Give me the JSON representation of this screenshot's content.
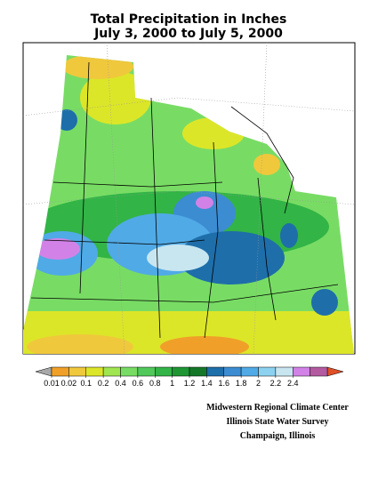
{
  "title": [
    "Total Precipitation in Inches",
    "July 3, 2000 to July 5, 2000"
  ],
  "legend": {
    "ticks": [
      0.01,
      0.02,
      0.1,
      0.2,
      0.4,
      0.6,
      0.8,
      1,
      1.2,
      1.4,
      1.6,
      1.8,
      2,
      2.2,
      2.4
    ],
    "colors": [
      "#a8a8a8",
      "#f0a028",
      "#f0c83c",
      "#dce628",
      "#a0e650",
      "#78dc64",
      "#50c85a",
      "#32b446",
      "#1e9632",
      "#147828",
      "#1e6eaa",
      "#3c8cd2",
      "#50aae6",
      "#8cd2f0",
      "#c8e6f0",
      "#d282e6",
      "#b45aa0",
      "#e05028"
    ]
  },
  "credits": [
    "Midwestern Regional Climate Center",
    "Illinois State Water Survey",
    "Champaign, Illinois"
  ]
}
